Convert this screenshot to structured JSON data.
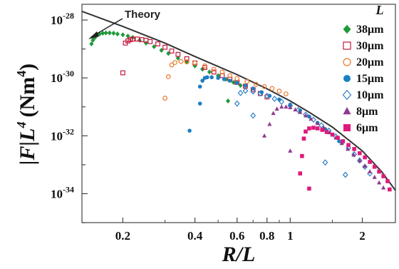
{
  "chart_data": {
    "type": "scatter",
    "x_scale": "log",
    "y_scale": "log",
    "xlim": [
      0.135,
      2.75
    ],
    "ylim": [
      1e-35,
      3.5e-28
    ],
    "grid": false,
    "xlabel_parts": [
      "R/L"
    ],
    "ylabel_text": "|F|L",
    "ylabel_sup": "4",
    "ylabel_unit": "(Nm",
    "ylabel_unit_sup": "4",
    "ylabel_unit_close": ")",
    "x_ticks": [
      0.2,
      0.4,
      0.6,
      0.8,
      1,
      2
    ],
    "x_tick_labels": [
      "0.2",
      "0.4",
      "0.6",
      "0.8",
      "1",
      "2"
    ],
    "y_ticks": [
      1e-28,
      1e-30,
      1e-32,
      1e-34
    ],
    "y_tick_labels": [
      {
        "base": "10",
        "exp": "-28"
      },
      {
        "base": "10",
        "exp": "-30"
      },
      {
        "base": "10",
        "exp": "-32"
      },
      {
        "base": "10",
        "exp": "-34"
      }
    ],
    "legend_title": "L",
    "legend_position": "right",
    "annotation": {
      "text": "Theory",
      "points_to": [
        0.21,
        1.2e-28
      ]
    },
    "theory_line": {
      "name": "Theory",
      "color": "#333333",
      "x": [
        0.135,
        0.2,
        0.3,
        0.4,
        0.6,
        0.8,
        1.0,
        1.2,
        1.5,
        2.0,
        2.4,
        2.75
      ],
      "y": [
        2e-28,
        6e-29,
        1.6e-29,
        5.5e-30,
        1.3e-30,
        4.2e-31,
        1.6e-31,
        6.5e-32,
        2e-32,
        3e-33,
        6e-34,
        1.3e-34
      ]
    },
    "series": [
      {
        "name": "38μm",
        "marker": "diamond",
        "filled": true,
        "color": "#1e9a3a",
        "x": [
          0.148,
          0.15,
          0.153,
          0.156,
          0.16,
          0.165,
          0.17,
          0.176,
          0.183,
          0.19,
          0.2,
          0.21,
          0.22,
          0.235,
          0.25,
          0.27,
          0.29,
          0.31,
          0.34,
          0.37,
          0.4,
          0.43,
          0.46,
          0.5,
          0.54,
          0.58,
          0.62,
          0.55
        ],
        "y": [
          1.5e-29,
          2e-29,
          2.5e-29,
          3e-29,
          3.3e-29,
          3.5e-29,
          3.6e-29,
          3.6e-29,
          3.5e-29,
          3.3e-29,
          3.1e-29,
          2.8e-29,
          2.5e-29,
          2e-29,
          1.6e-29,
          1.2e-29,
          9e-30,
          7e-30,
          4.8e-30,
          3.5e-30,
          2.6e-30,
          2e-30,
          1.6e-30,
          1.2e-30,
          9e-31,
          7e-31,
          5.5e-31,
          1.6e-31
        ]
      },
      {
        "name": "30μm",
        "marker": "square",
        "filled": false,
        "color": "#c4183c",
        "x": [
          0.2,
          0.205,
          0.21,
          0.215,
          0.22,
          0.23,
          0.24,
          0.25,
          0.26,
          0.28,
          0.3,
          0.32,
          0.34,
          0.37,
          0.4,
          0.44,
          0.48,
          0.52,
          0.56,
          0.6,
          0.65,
          0.7,
          0.75,
          0.8
        ],
        "y": [
          1.5e-30,
          1.6e-29,
          1.9e-29,
          2.1e-29,
          2.2e-29,
          2.2e-29,
          2.1e-29,
          2e-29,
          1.8e-29,
          1.5e-29,
          1.15e-29,
          8.5e-30,
          6.5e-30,
          4.6e-30,
          3.3e-30,
          2.3e-30,
          1.6e-30,
          1.2e-30,
          9e-31,
          7e-31,
          5.2e-31,
          3.9e-31,
          2.9e-31,
          2.2e-31
        ]
      },
      {
        "name": "20μm",
        "marker": "circle",
        "filled": false,
        "color": "#ee7a2e",
        "x": [
          0.3,
          0.31,
          0.32,
          0.33,
          0.35,
          0.37,
          0.4,
          0.44,
          0.48,
          0.52,
          0.56,
          0.6,
          0.66,
          0.72,
          0.78,
          0.84,
          0.9,
          0.96
        ],
        "y": [
          2e-31,
          1.1e-30,
          2.8e-30,
          3.4e-30,
          3.7e-30,
          3.6e-30,
          3.3e-30,
          2.6e-30,
          2e-30,
          1.6e-30,
          1.2e-30,
          9.5e-31,
          7.5e-31,
          6e-31,
          5e-31,
          4.3e-31,
          3.5e-31,
          2.8e-31
        ]
      },
      {
        "name": "15μm",
        "marker": "circle",
        "filled": true,
        "color": "#1b7fc4",
        "x": [
          0.42,
          0.43,
          0.44,
          0.45,
          0.47,
          0.5,
          0.53,
          0.56,
          0.6,
          0.65,
          0.7,
          0.76,
          0.82,
          0.9,
          1.0,
          1.1,
          1.2,
          1.3,
          1.4,
          1.5,
          1.6,
          0.42,
          0.38
        ],
        "y": [
          5e-31,
          8e-31,
          1e-30,
          1.05e-30,
          1.05e-30,
          1e-30,
          9e-31,
          8e-31,
          6.8e-31,
          5.4e-31,
          4.3e-31,
          3.2e-31,
          2.4e-31,
          1.8e-31,
          1.2e-31,
          7.5e-32,
          4.6e-32,
          2.8e-32,
          1.7e-32,
          1.1e-32,
          6.5e-33,
          1.3e-31,
          1.5e-32
        ]
      },
      {
        "name": "10μm",
        "marker": "diamond",
        "filled": false,
        "color": "#2f7ec2",
        "x": [
          0.6,
          0.62,
          0.65,
          0.7,
          0.75,
          0.8,
          0.86,
          0.92,
          1.0,
          1.08,
          1.16,
          1.25,
          1.35,
          1.45,
          1.55,
          1.65,
          1.75,
          1.85,
          1.95,
          2.05,
          2.15,
          0.7,
          1.4,
          1.7
        ],
        "y": [
          1.3e-31,
          3e-31,
          3.6e-31,
          3.4e-31,
          2.9e-31,
          2.4e-31,
          1.9e-31,
          1.5e-31,
          1.1e-31,
          7.8e-32,
          5.4e-32,
          3.6e-32,
          2.3e-32,
          1.5e-32,
          9.5e-33,
          6e-33,
          3.8e-33,
          2.3e-33,
          1.4e-33,
          8.5e-34,
          5e-34,
          5e-32,
          1.2e-33,
          4.5e-34
        ]
      },
      {
        "name": "8μm",
        "marker": "triangle",
        "filled": true,
        "color": "#8e3a8e",
        "x": [
          0.82,
          0.85,
          0.88,
          0.92,
          0.96,
          1.0,
          1.05,
          1.1,
          1.16,
          1.22,
          1.3,
          1.38,
          1.46,
          1.55,
          1.64,
          1.74,
          1.84,
          1.95,
          2.05,
          2.15,
          2.25,
          2.35,
          2.45,
          0.78,
          1.0
        ],
        "y": [
          2.5e-32,
          6e-32,
          8.5e-32,
          1e-31,
          1e-31,
          9.5e-32,
          8e-32,
          6.5e-32,
          5e-32,
          3.8e-32,
          2.7e-32,
          1.9e-32,
          1.3e-32,
          8.5e-33,
          5.5e-33,
          3.5e-33,
          2.2e-33,
          1.4e-33,
          9e-34,
          5.8e-34,
          3.7e-34,
          2.4e-34,
          1.6e-34,
          1e-32,
          3e-33
        ]
      },
      {
        "name": "6μm",
        "marker": "square",
        "filled": true,
        "color": "#e01a7a",
        "x": [
          1.12,
          1.14,
          1.16,
          1.2,
          1.25,
          1.3,
          1.36,
          1.42,
          1.5,
          1.58,
          1.66,
          1.75,
          1.85,
          1.95,
          2.05,
          2.15,
          2.25,
          2.35,
          2.45,
          2.55,
          1.1,
          1.2,
          2.6
        ],
        "y": [
          2e-33,
          8e-33,
          1.4e-32,
          1.8e-32,
          1.9e-32,
          1.8e-32,
          1.6e-32,
          1.35e-32,
          1.1e-32,
          8.5e-33,
          6.5e-33,
          4.8e-33,
          3.5e-33,
          2.5e-33,
          1.8e-33,
          1.25e-33,
          8.5e-34,
          5.8e-34,
          4e-34,
          2.7e-34,
          5e-34,
          1.5e-34,
          1.4e-34
        ]
      }
    ]
  }
}
